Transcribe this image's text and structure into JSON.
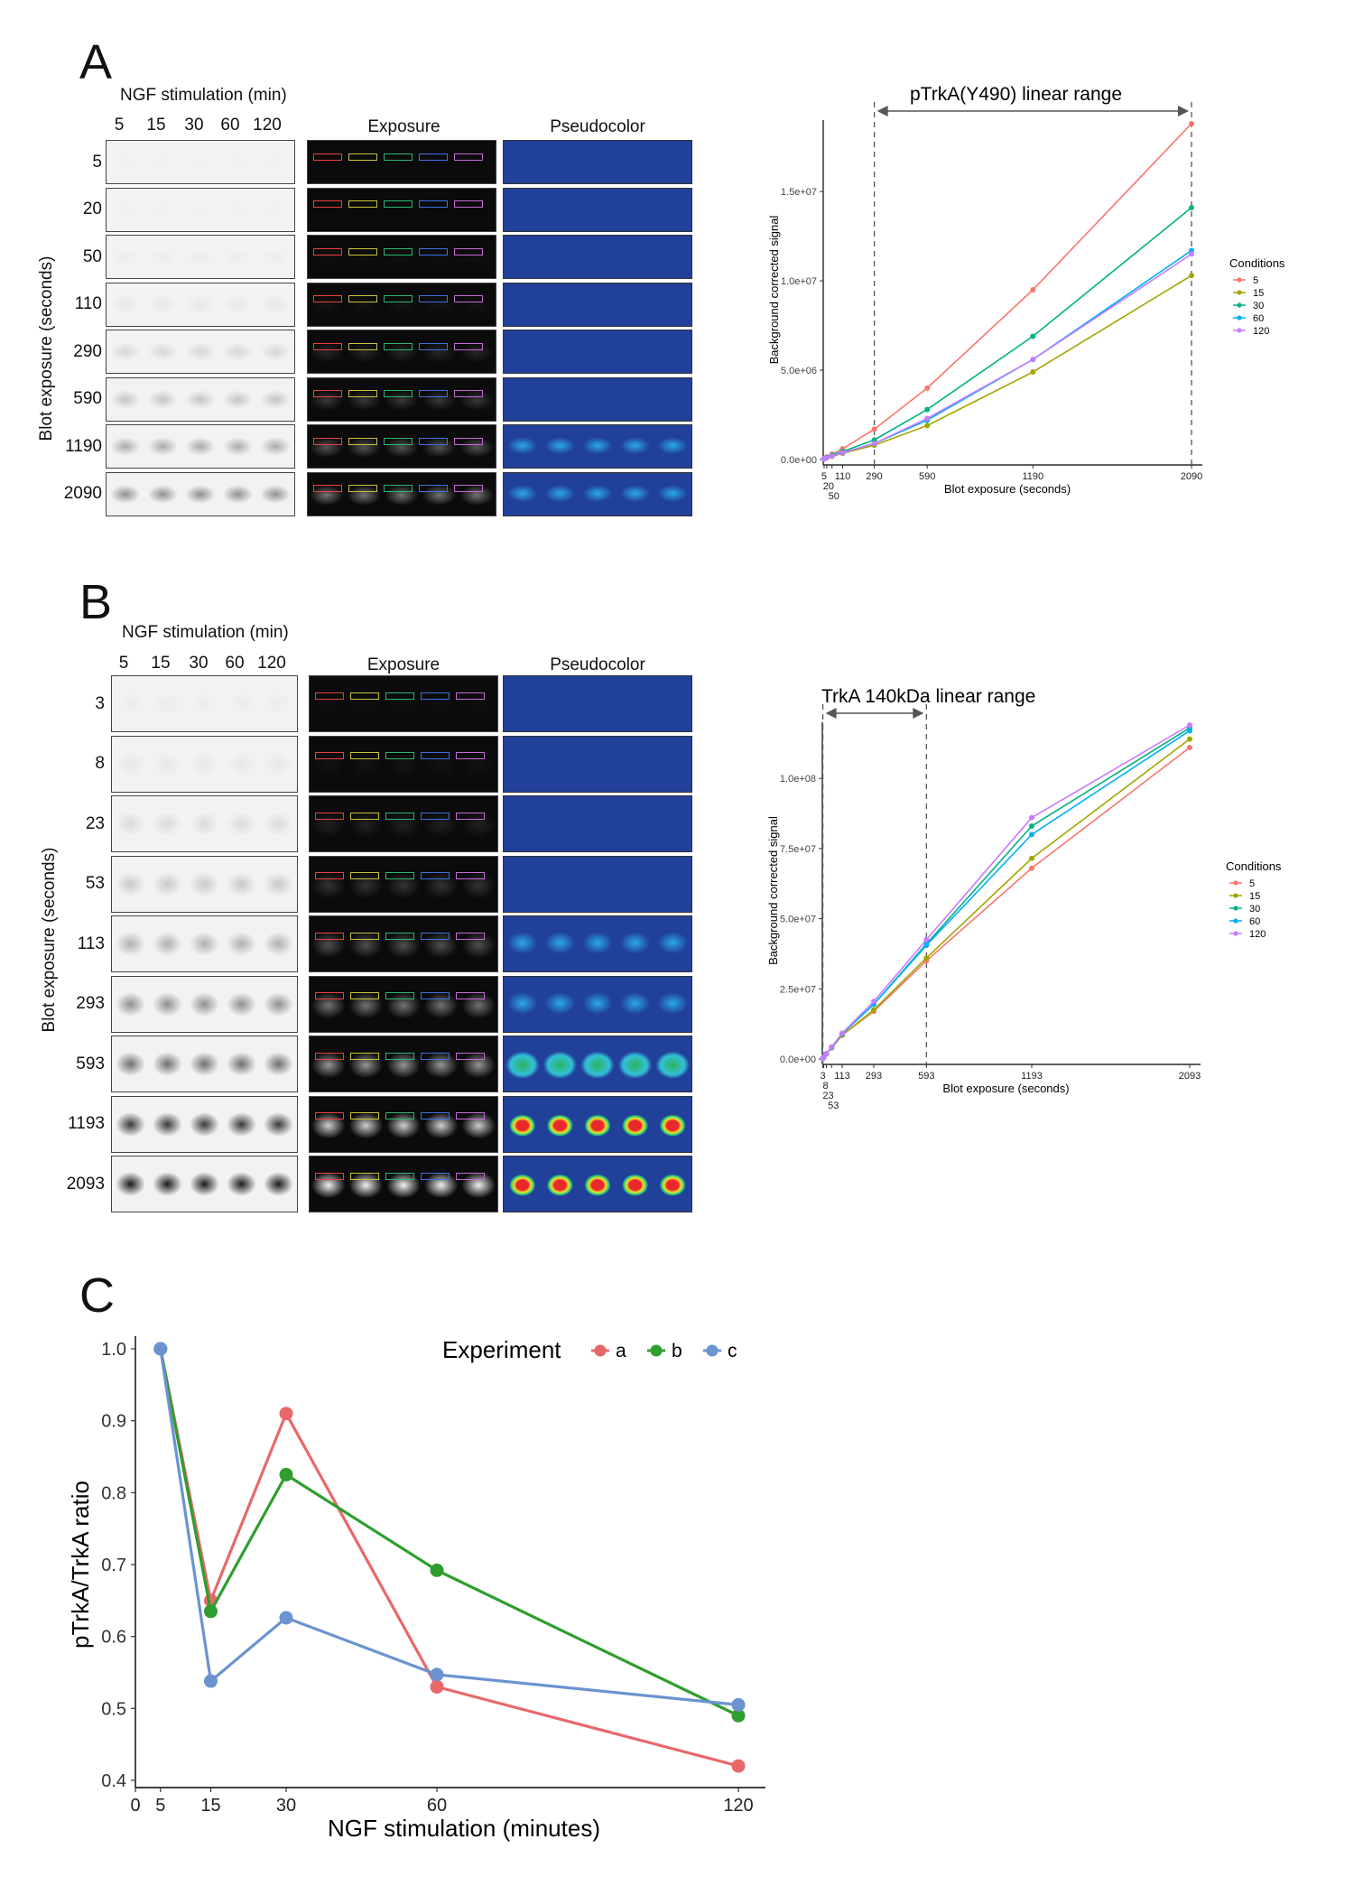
{
  "panels": {
    "A": {
      "letter": "A",
      "ngf_header": "NGF stimulation (min)",
      "lanes": [
        "5",
        "15",
        "30",
        "60",
        "120"
      ],
      "exposure_header": "Exposure",
      "pseudocolor_header": "Pseudocolor",
      "ylabel": "Blot exposure (seconds)",
      "rows": [
        "5",
        "20",
        "50",
        "110",
        "290",
        "590",
        "1190",
        "2090"
      ],
      "intensity": [
        0.0,
        0.0,
        0.02,
        0.04,
        0.12,
        0.2,
        0.32,
        0.45
      ]
    },
    "B": {
      "letter": "B",
      "ngf_header": "NGF stimulation (min)",
      "lanes": [
        "5",
        "15",
        "30",
        "60",
        "120"
      ],
      "exposure_header": "Exposure",
      "pseudocolor_header": "Pseudocolor",
      "ylabel": "Blot exposure (seconds)",
      "rows": [
        "3",
        "8",
        "23",
        "53",
        "113",
        "293",
        "593",
        "1193",
        "2093"
      ],
      "intensity": [
        0.02,
        0.04,
        0.1,
        0.18,
        0.3,
        0.45,
        0.6,
        0.85,
        1.0
      ]
    },
    "C": {
      "letter": "C"
    }
  },
  "lane_colors": [
    "#e8413f",
    "#c9c13a",
    "#2bb673",
    "#3f6fe0",
    "#c46bd6"
  ],
  "chart_data": [
    {
      "type": "line",
      "title": "pTrkA(Y490) linear range",
      "xlabel": "Blot exposure (seconds)",
      "ylabel": "Background corrected signal",
      "x": [
        5,
        20,
        50,
        110,
        290,
        590,
        1190,
        2090
      ],
      "xticks_top": [
        "5",
        "110",
        "290",
        "590",
        "1190",
        "2090"
      ],
      "xticks_stacked": [
        "20",
        "50"
      ],
      "yticks": [
        "0.0e+00",
        "5.0e+06",
        "1.0e+07",
        "1.5e+07"
      ],
      "ylim": [
        0,
        19000000
      ],
      "xlim": [
        0,
        2090
      ],
      "vlines": [
        290,
        2090
      ],
      "legend_title": "Conditions",
      "series": [
        {
          "name": "5",
          "color": "#f8766d",
          "values": [
            50000,
            150000,
            300000,
            600000,
            1700000,
            4000000,
            9500000,
            18800000
          ]
        },
        {
          "name": "15",
          "color": "#a3a500",
          "values": [
            30000,
            90000,
            180000,
            350000,
            800000,
            1900000,
            4900000,
            10300000
          ]
        },
        {
          "name": "30",
          "color": "#00b284",
          "values": [
            40000,
            120000,
            250000,
            450000,
            1100000,
            2800000,
            6900000,
            14100000
          ]
        },
        {
          "name": "60",
          "color": "#00b0f6",
          "values": [
            35000,
            100000,
            200000,
            380000,
            900000,
            2200000,
            5600000,
            11700000
          ]
        },
        {
          "name": "120",
          "color": "#c77cff",
          "values": [
            35000,
            100000,
            200000,
            380000,
            900000,
            2300000,
            5600000,
            11500000
          ]
        }
      ]
    },
    {
      "type": "line",
      "title": "TrkA 140kDa linear range",
      "xlabel": "Blot exposure (seconds)",
      "ylabel": "Background corrected signal",
      "x": [
        3,
        8,
        23,
        53,
        113,
        293,
        593,
        1193,
        2093
      ],
      "xticks_top": [
        "3",
        "113",
        "293",
        "593",
        "1193",
        "2093"
      ],
      "xticks_stacked": [
        "8",
        "23",
        "53"
      ],
      "yticks": [
        "0.0e+00",
        "2.5e+07",
        "5.0e+07",
        "7.5e+07",
        "1.0e+08"
      ],
      "ylim": [
        0,
        120000000
      ],
      "xlim": [
        0,
        2093
      ],
      "vlines": [
        3,
        593
      ],
      "legend_title": "Conditions",
      "series": [
        {
          "name": "5",
          "color": "#f8766d",
          "values": [
            200000,
            600000,
            1800000,
            4000000,
            8500000,
            17000000,
            35000000,
            68000000,
            111000000
          ]
        },
        {
          "name": "15",
          "color": "#a3a500",
          "values": [
            200000,
            600000,
            1800000,
            4000000,
            8500000,
            17500000,
            36000000,
            71500000,
            114000000
          ]
        },
        {
          "name": "30",
          "color": "#00b284",
          "values": [
            200000,
            600000,
            1900000,
            4200000,
            9000000,
            19500000,
            41000000,
            83000000,
            118000000
          ]
        },
        {
          "name": "60",
          "color": "#00b0f6",
          "values": [
            200000,
            600000,
            1900000,
            4200000,
            9000000,
            19500000,
            40500000,
            80000000,
            117000000
          ]
        },
        {
          "name": "120",
          "color": "#c77cff",
          "values": [
            200000,
            600000,
            1900000,
            4300000,
            9200000,
            20500000,
            42500000,
            86000000,
            119000000
          ]
        }
      ]
    },
    {
      "type": "line",
      "xlabel": "NGF stimulation (minutes)",
      "ylabel": "pTrkA/TrkA ratio",
      "x": [
        5,
        15,
        30,
        60,
        120
      ],
      "xticks": [
        "0",
        "5",
        "15",
        "30",
        "60",
        "120"
      ],
      "yticks": [
        "0.4",
        "0.5",
        "0.6",
        "0.7",
        "0.8",
        "0.9",
        "1.0"
      ],
      "ylim": [
        0.4,
        1.0
      ],
      "xlim": [
        0,
        120
      ],
      "legend_title": "Experiment",
      "series": [
        {
          "name": "a",
          "color": "#e8686a",
          "values": [
            1.0,
            0.65,
            0.91,
            0.53,
            0.42
          ]
        },
        {
          "name": "b",
          "color": "#2e9e2e",
          "values": [
            1.0,
            0.635,
            0.825,
            0.692,
            0.49
          ]
        },
        {
          "name": "c",
          "color": "#6b93cf",
          "values": [
            1.0,
            0.538,
            0.626,
            0.547,
            0.505
          ]
        }
      ]
    }
  ]
}
